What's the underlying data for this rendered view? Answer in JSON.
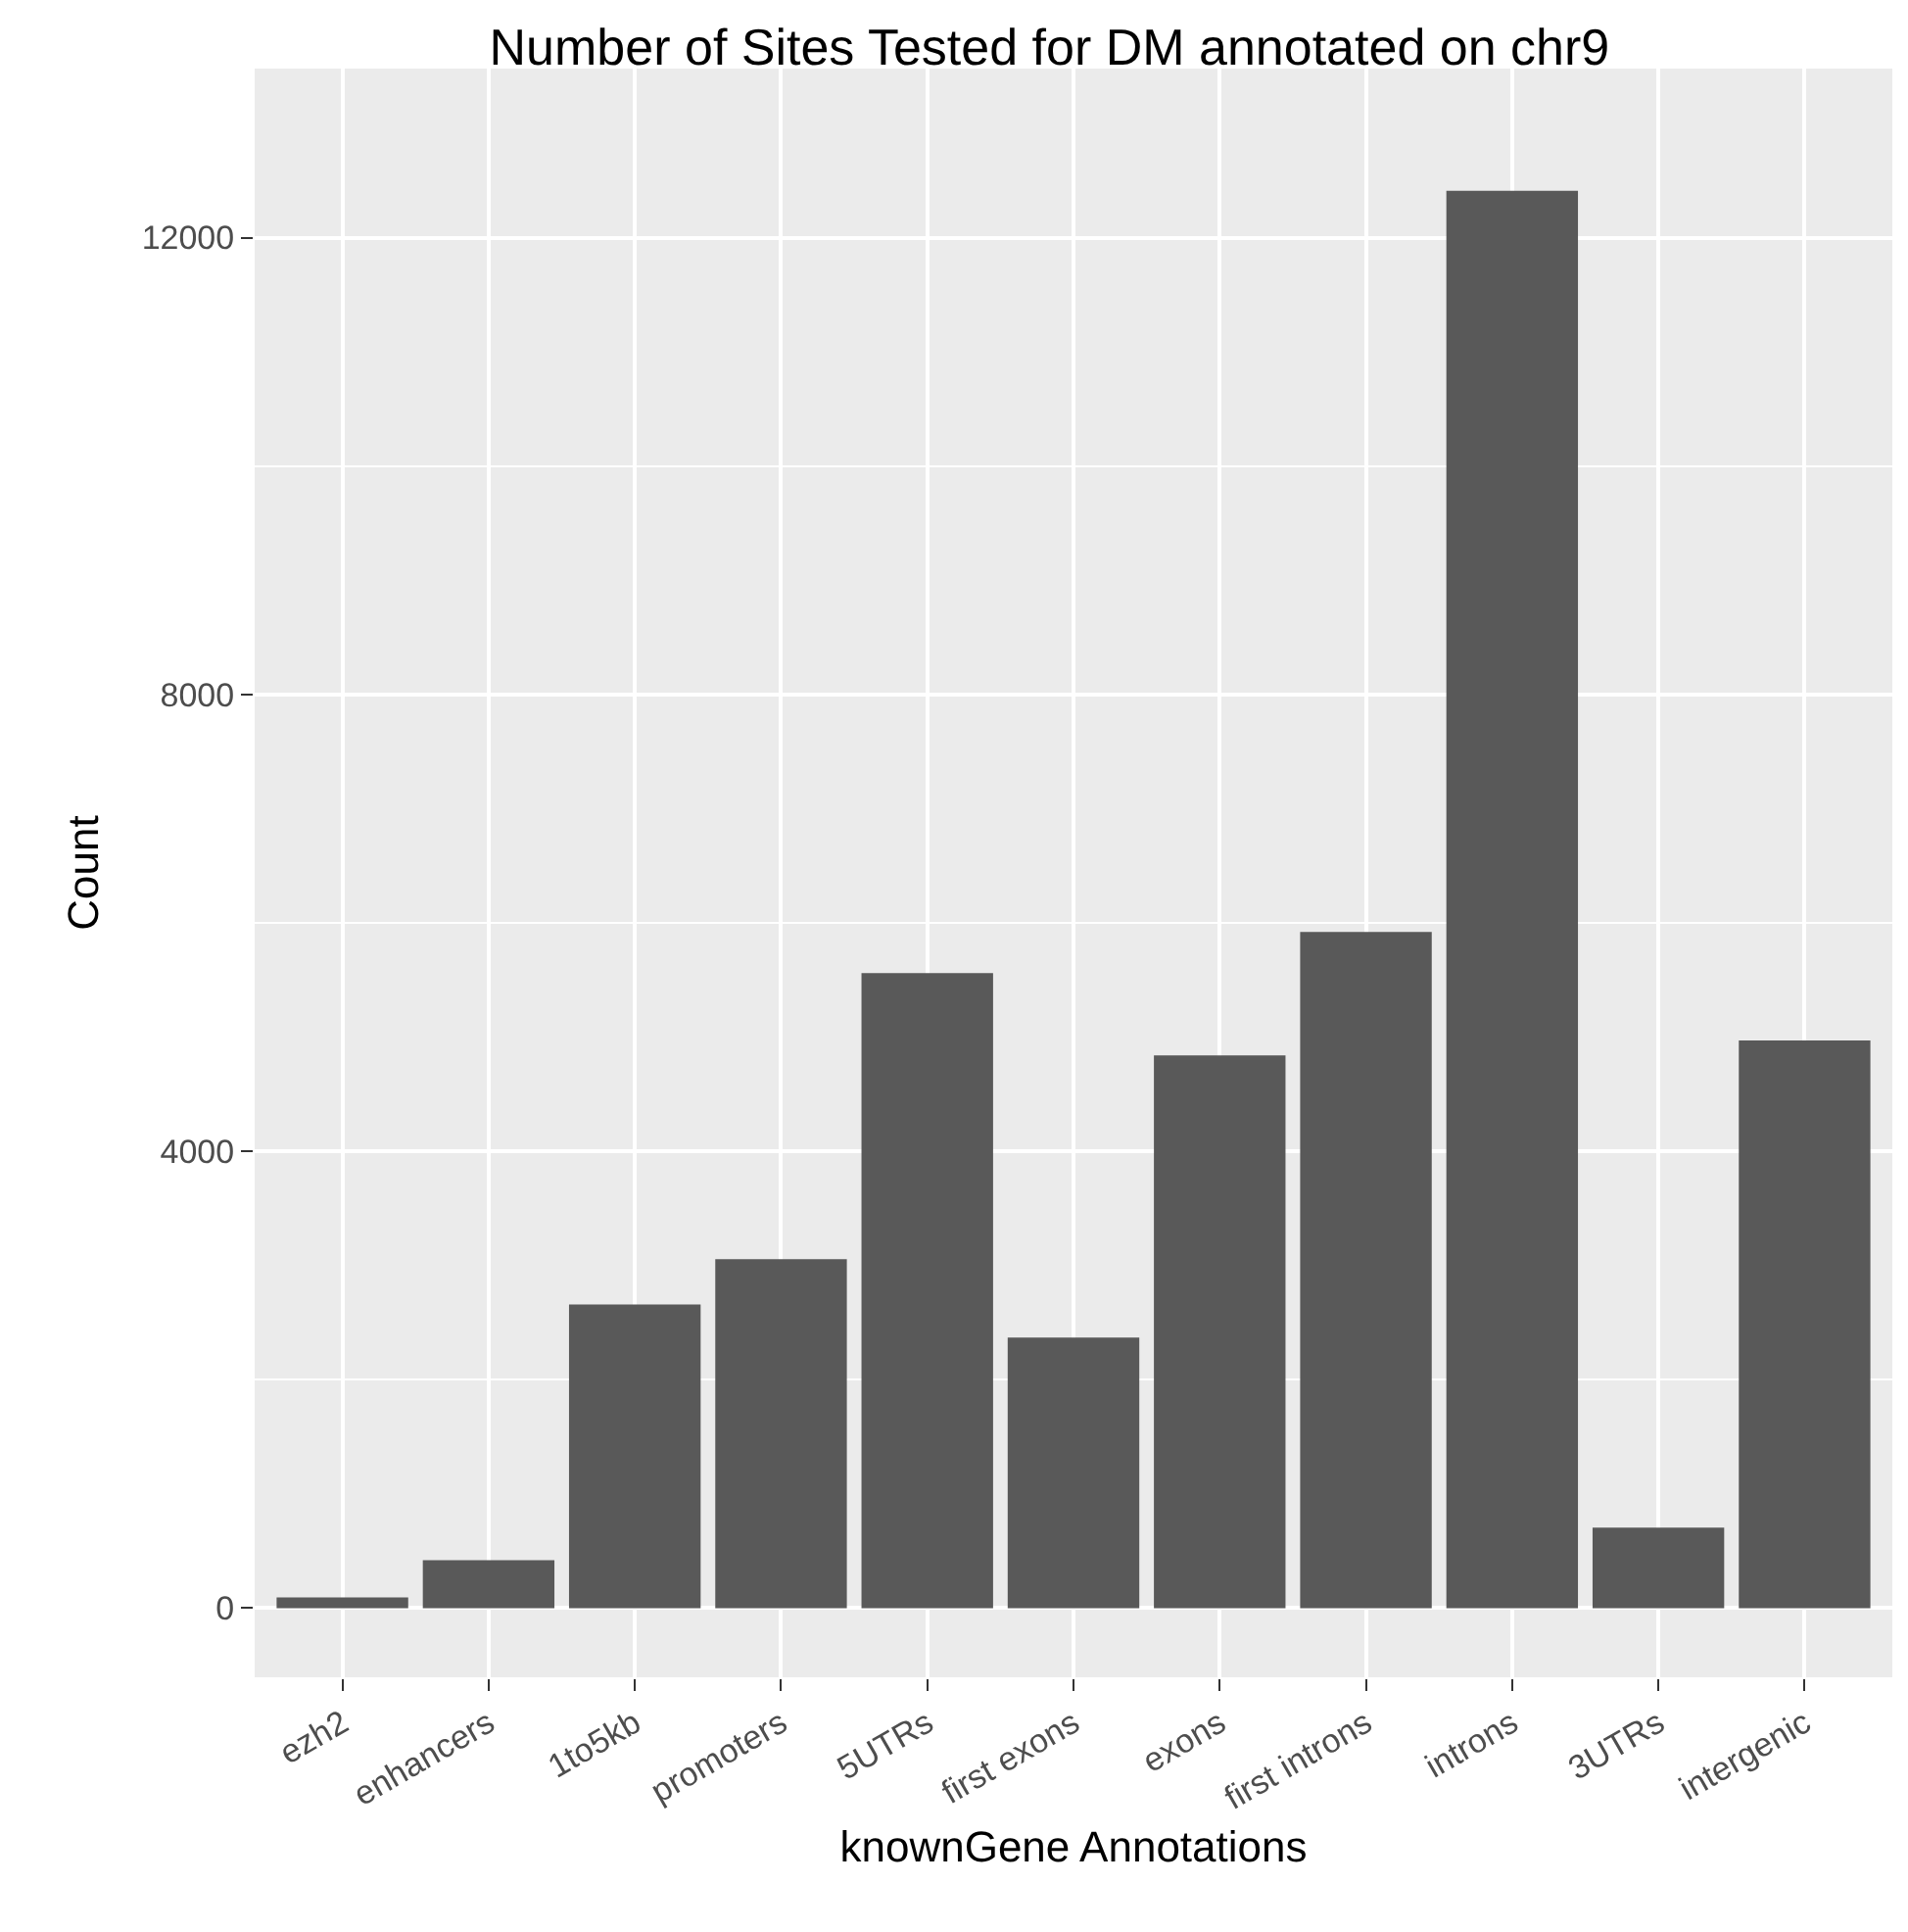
{
  "chart_data": {
    "type": "bar",
    "title": "Number of Sites Tested for DM annotated on chr9",
    "xlabel": "knownGene Annotations",
    "ylabel": "Count",
    "categories": [
      "ezh2",
      "enhancers",
      "1to5kb",
      "promoters",
      "5UTRs",
      "first exons",
      "exons",
      "first introns",
      "introns",
      "3UTRs",
      "intergenic"
    ],
    "values": [
      95,
      420,
      2660,
      3055,
      5560,
      2370,
      4840,
      5920,
      12410,
      705,
      4970
    ],
    "color": "#595959",
    "ylim": [
      -605,
      13480
    ],
    "yticks": [
      0,
      4000,
      8000,
      12000
    ],
    "grid": true
  }
}
